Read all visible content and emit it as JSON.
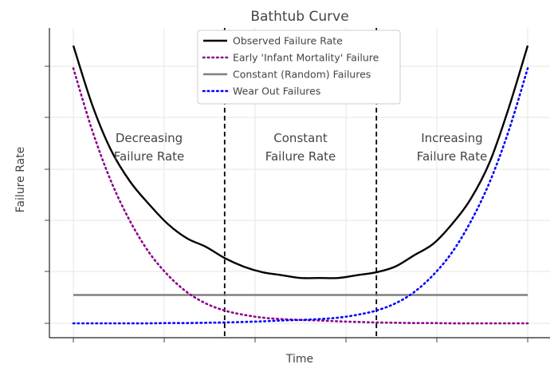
{
  "chart_data": {
    "type": "line",
    "title": "Bathtub Curve",
    "xlabel": "Time",
    "ylabel": "Failure Rate",
    "grid": true,
    "legend_placement": "top-center",
    "xlim": [
      0,
      1
    ],
    "ylim": [
      0,
      1
    ],
    "x": [
      0.0,
      0.0417,
      0.0833,
      0.125,
      0.1667,
      0.2083,
      0.25,
      0.2917,
      0.3333,
      0.375,
      0.4167,
      0.4583,
      0.5,
      0.5417,
      0.5833,
      0.625,
      0.6667,
      0.7083,
      0.75,
      0.7917,
      0.8333,
      0.875,
      0.9167,
      0.9583,
      1.0
    ],
    "series": [
      {
        "name": "Observed Failure Rate",
        "color": "#000000",
        "style": "solid",
        "values": [
          0.98,
          0.77,
          0.61,
          0.5,
          0.42,
          0.35,
          0.3,
          0.27,
          0.23,
          0.2,
          0.18,
          0.17,
          0.16,
          0.16,
          0.16,
          0.17,
          0.18,
          0.2,
          0.24,
          0.28,
          0.35,
          0.44,
          0.57,
          0.76,
          0.98
        ]
      },
      {
        "name": "Early 'Infant Mortality' Failure",
        "color": "#8b008b",
        "style": "dotted",
        "values": [
          0.9,
          0.68,
          0.5,
          0.36,
          0.25,
          0.17,
          0.11,
          0.07,
          0.045,
          0.03,
          0.02,
          0.015,
          0.012,
          0.01,
          0.007,
          0.005,
          0.003,
          0.002,
          0.001,
          0.001,
          0.0,
          0.0,
          0.0,
          0.0,
          0.0
        ]
      },
      {
        "name": "Constant (Random) Failures",
        "color": "#808080",
        "style": "solid",
        "values": [
          0.1,
          0.1,
          0.1,
          0.1,
          0.1,
          0.1,
          0.1,
          0.1,
          0.1,
          0.1,
          0.1,
          0.1,
          0.1,
          0.1,
          0.1,
          0.1,
          0.1,
          0.1,
          0.1,
          0.1,
          0.1,
          0.1,
          0.1,
          0.1,
          0.1
        ]
      },
      {
        "name": "Wear Out Failures",
        "color": "#0000ff",
        "style": "dotted",
        "values": [
          0.0,
          0.0,
          0.0,
          0.0,
          0.0,
          0.001,
          0.001,
          0.002,
          0.003,
          0.005,
          0.007,
          0.01,
          0.012,
          0.015,
          0.02,
          0.03,
          0.045,
          0.07,
          0.11,
          0.17,
          0.25,
          0.36,
          0.5,
          0.68,
          0.9
        ]
      }
    ],
    "boundaries": [
      0.333,
      0.667
    ],
    "regions": [
      {
        "line1": "Decreasing",
        "line2": "Failure Rate",
        "x_center": 0.1667
      },
      {
        "line1": "Constant",
        "line2": "Failure Rate",
        "x_center": 0.5
      },
      {
        "line1": "Increasing",
        "line2": "Failure Rate",
        "x_center": 0.8333
      }
    ]
  }
}
